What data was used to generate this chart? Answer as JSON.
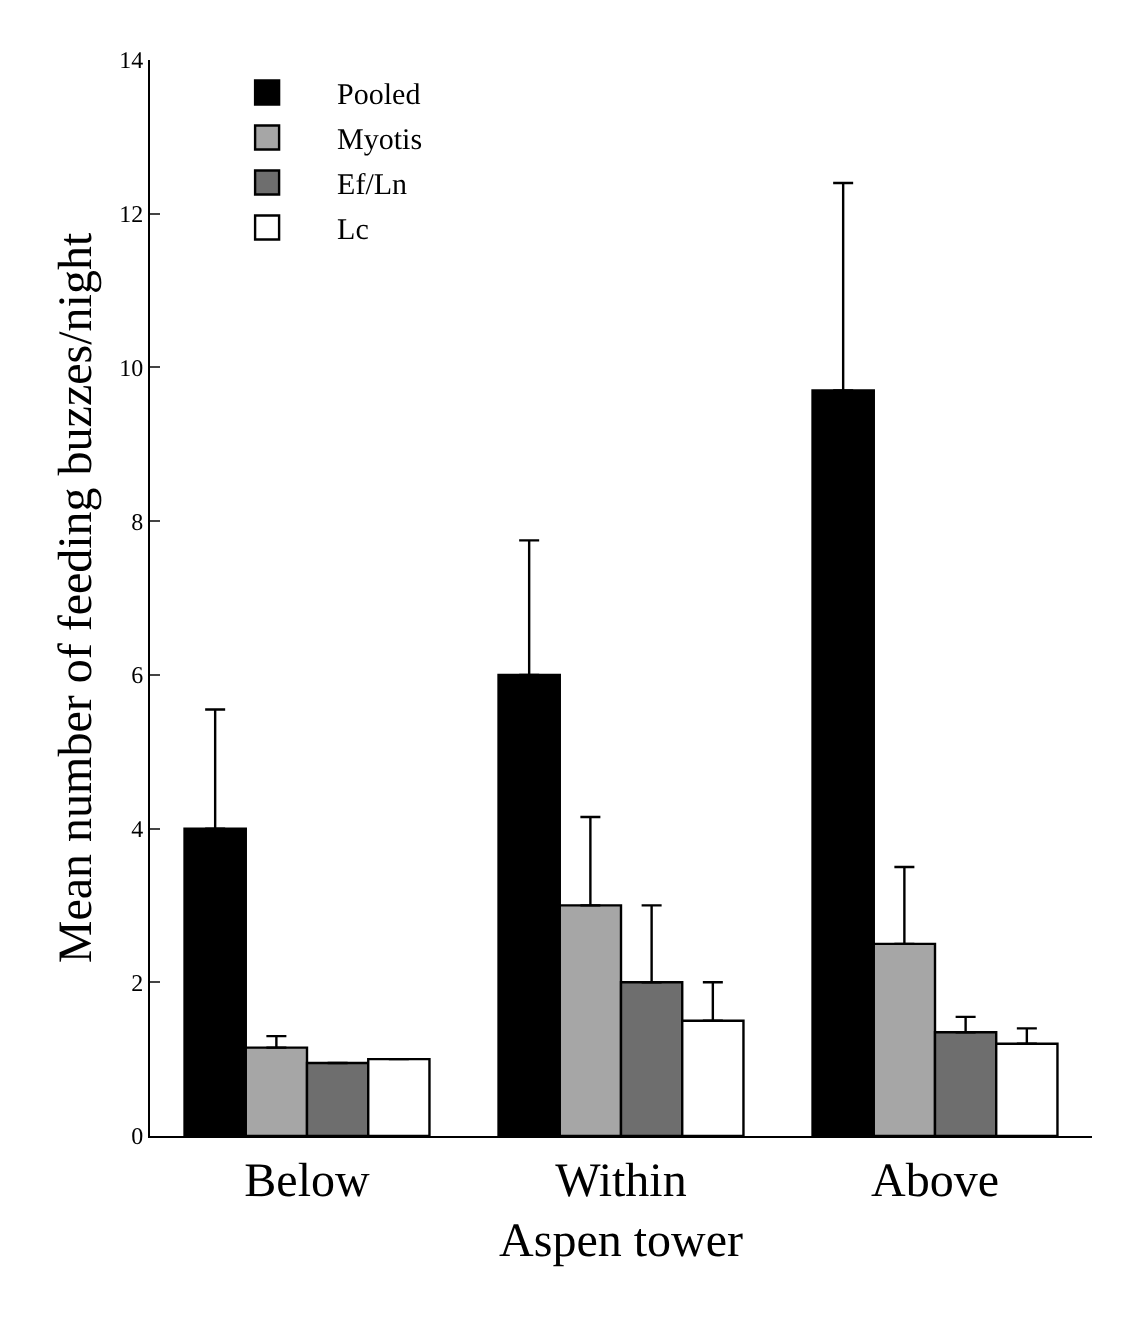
{
  "chart_data": {
    "type": "bar",
    "xlabel": "Aspen tower",
    "ylabel": "Mean number of feeding buzzes/night",
    "categories": [
      "Below",
      "Within",
      "Above"
    ],
    "series": [
      {
        "name": "Pooled",
        "color": "#000000",
        "values": [
          4.0,
          6.0,
          9.7
        ],
        "errors": [
          [
            4.0,
            5.55
          ],
          [
            6.0,
            7.75
          ],
          [
            9.7,
            12.4
          ]
        ]
      },
      {
        "name": "Myotis",
        "color": "#a6a6a6",
        "values": [
          1.15,
          3.0,
          2.5
        ],
        "errors": [
          [
            1.15,
            1.3
          ],
          [
            3.0,
            4.15
          ],
          [
            2.5,
            3.5
          ]
        ]
      },
      {
        "name": "Ef/Ln",
        "color": "#6e6e6e",
        "values": [
          0.95,
          2.0,
          1.35
        ],
        "errors": [
          [
            0.95,
            0.95
          ],
          [
            2.0,
            3.0
          ],
          [
            1.35,
            1.55
          ]
        ]
      },
      {
        "name": "Lc",
        "color": "#ffffff",
        "values": [
          1.0,
          1.5,
          1.2
        ],
        "errors": [
          [
            1.0,
            1.0
          ],
          [
            1.5,
            2.0
          ],
          [
            1.2,
            1.4
          ]
        ]
      }
    ],
    "ylim": [
      0,
      14
    ],
    "yticks": [
      0,
      2,
      4,
      6,
      8,
      10,
      12,
      14
    ],
    "grid": false,
    "legend": "top left"
  }
}
